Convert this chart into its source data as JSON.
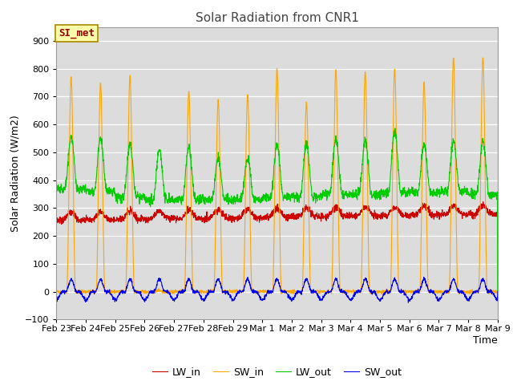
{
  "title": "Solar Radiation from CNR1",
  "xlabel": "Time",
  "ylabel": "Solar Radiation (W/m2)",
  "ylim": [
    -100,
    950
  ],
  "yticks": [
    -100,
    0,
    100,
    200,
    300,
    400,
    500,
    600,
    700,
    800,
    900
  ],
  "annotation": "SI_met",
  "colors": {
    "LW_in": "#cc0000",
    "SW_in": "#ffa500",
    "LW_out": "#00cc00",
    "SW_out": "#0000ee"
  },
  "bg_color": "#dcdcdc",
  "fig_color": "#ffffff",
  "linewidth": 0.8,
  "x_tick_labels": [
    "Feb 23",
    "Feb 24",
    "Feb 25",
    "Feb 26",
    "Feb 27",
    "Feb 28",
    "Feb 29",
    "Mar 1",
    "Mar 2",
    "Mar 3",
    "Mar 4",
    "Mar 5",
    "Mar 6",
    "Mar 7",
    "Mar 8",
    "Mar 9"
  ],
  "n_days": 15,
  "pts_per_day": 144,
  "sw_peaks": [
    770,
    750,
    775,
    5,
    720,
    690,
    710,
    800,
    680,
    800,
    790,
    800,
    750,
    840,
    840
  ],
  "lw_out_peaks": [
    555,
    550,
    530,
    510,
    520,
    480,
    480,
    530,
    530,
    550,
    545,
    575,
    530,
    540,
    540
  ],
  "lw_out_nights": [
    370,
    360,
    340,
    330,
    330,
    330,
    330,
    340,
    340,
    350,
    350,
    355,
    355,
    360,
    350
  ]
}
